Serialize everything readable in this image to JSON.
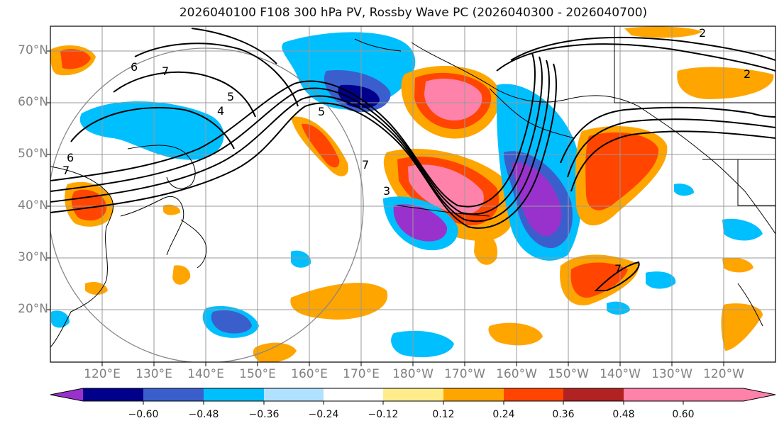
{
  "title": "2026040100 F108 300 hPa PV, Rossby Wave PC (2026040300 - 2026040700)",
  "lat_labels": [
    "70°N",
    "60°N",
    "50°N",
    "40°N",
    "30°N",
    "20°N"
  ],
  "lon_labels": [
    "120°E",
    "130°E",
    "140°E",
    "150°E",
    "160°E",
    "170°E",
    "180°W",
    "170°W",
    "160°W",
    "150°W",
    "140°W",
    "130°W",
    "120°W"
  ],
  "contour_labels": [
    "6",
    "7",
    "5",
    "4",
    "5",
    "6",
    "7",
    "2",
    "3",
    "7",
    "2",
    "7"
  ],
  "colorbar": {
    "ticks": [
      "−0.60",
      "−0.48",
      "−0.36",
      "−0.24",
      "−0.12",
      "0.12",
      "0.24",
      "0.36",
      "0.48",
      "0.60"
    ],
    "colors": [
      "#9932cc",
      "#00008b",
      "#3a5fcd",
      "#00bfff",
      "#b0e2ff",
      "#ffffff",
      "#ffec8b",
      "#ffa500",
      "#ff4500",
      "#b22222",
      "#ff82ab"
    ]
  }
}
